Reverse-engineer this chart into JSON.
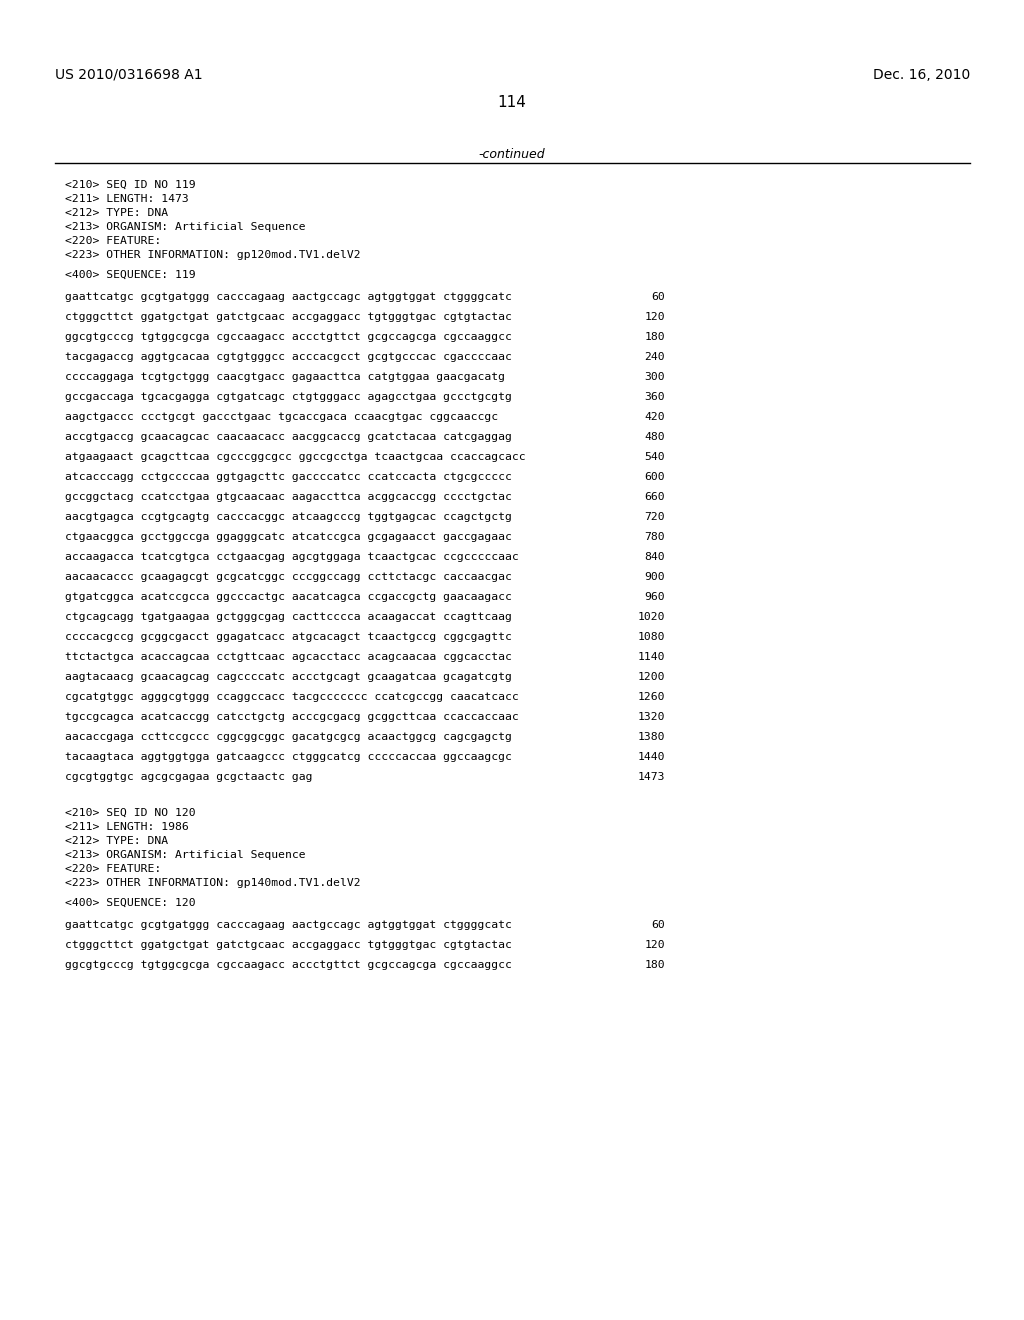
{
  "patent_left": "US 2010/0316698 A1",
  "patent_right": "Dec. 16, 2010",
  "page_number": "114",
  "continued_label": "-continued",
  "background_color": "#ffffff",
  "text_color": "#000000",
  "header_section": [
    "<210> SEQ ID NO 119",
    "<211> LENGTH: 1473",
    "<212> TYPE: DNA",
    "<213> ORGANISM: Artificial Sequence",
    "<220> FEATURE:",
    "<223> OTHER INFORMATION: gp120mod.TV1.delV2"
  ],
  "sequence_label_119": "<400> SEQUENCE: 119",
  "sequence_lines_119": [
    [
      "gaattcatgc gcgtgatggg cacccagaag aactgccagc agtggtggat ctggggcatc",
      "60"
    ],
    [
      "ctgggcttct ggatgctgat gatctgcaac accgaggacc tgtgggtgac cgtgtactac",
      "120"
    ],
    [
      "ggcgtgcccg tgtggcgcga cgccaagacc accctgttct gcgccagcga cgccaaggcc",
      "180"
    ],
    [
      "tacgagaccg aggtgcacaa cgtgtgggcc acccacgcct gcgtgcccac cgaccccaac",
      "240"
    ],
    [
      "ccccaggaga tcgtgctggg caacgtgacc gagaacttca catgtggaa gaacgacatg",
      "300"
    ],
    [
      "gccgaccaga tgcacgagga cgtgatcagc ctgtgggacc agagcctgaa gccctgcgtg",
      "360"
    ],
    [
      "aagctgaccc ccctgcgt gaccctgaac tgcaccgaca ccaacgtgac cggcaaccgc",
      "420"
    ],
    [
      "accgtgaccg gcaacagcac caacaacacc aacggcaccg gcatctacaa catcgaggag",
      "480"
    ],
    [
      "atgaagaact gcagcttcaa cgcccggcgcc ggccgcctga tcaactgcaa ccaccagcacc",
      "540"
    ],
    [
      "atcacccagg cctgccccaa ggtgagcttc gaccccatcc ccatccacta ctgcgccccc",
      "600"
    ],
    [
      "gccggctacg ccatcctgaa gtgcaacaac aagaccttca acggcaccgg cccctgctac",
      "660"
    ],
    [
      "aacgtgagca ccgtgcagtg cacccacggc atcaagcccg tggtgagcac ccagctgctg",
      "720"
    ],
    [
      "ctgaacggca gcctggccga ggagggcatc atcatccgca gcgagaacct gaccgagaac",
      "780"
    ],
    [
      "accaagacca tcatcgtgca cctgaacgag agcgtggaga tcaactgcac ccgcccccaac",
      "840"
    ],
    [
      "aacaacaccc gcaagagcgt gcgcatcggc cccggccagg ccttctacgc caccaacgac",
      "900"
    ],
    [
      "gtgatcggca acatccgcca ggcccactgc aacatcagca ccgaccgctg gaacaagacc",
      "960"
    ],
    [
      "ctgcagcagg tgatgaagaa gctgggcgag cacttcccca acaagaccat ccagttcaag",
      "1020"
    ],
    [
      "ccccacgccg gcggcgacct ggagatcacc atgcacagct tcaactgccg cggcgagttc",
      "1080"
    ],
    [
      "ttctactgca acaccagcaa cctgttcaac agcacctacc acagcaacaa cggcacctac",
      "1140"
    ],
    [
      "aagtacaacg gcaacagcag cagccccatc accctgcagt gcaagatcaa gcagatcgtg",
      "1200"
    ],
    [
      "cgcatgtggc agggcgtggg ccaggccacc tacgccccccc ccatcgccgg caacatcacc",
      "1260"
    ],
    [
      "tgccgcagca acatcaccgg catcctgctg acccgcgacg gcggcttcaa ccaccaccaac",
      "1320"
    ],
    [
      "aacaccgaga ccttccgccc cggcggcggc gacatgcgcg acaactggcg cagcgagctg",
      "1380"
    ],
    [
      "tacaagtaca aggtggtgga gatcaagccc ctgggcatcg cccccaccaa ggccaagcgc",
      "1440"
    ],
    [
      "cgcgtggtgc agcgcgagaa gcgctaactc gag",
      "1473"
    ]
  ],
  "header_section_120": [
    "<210> SEQ ID NO 120",
    "<211> LENGTH: 1986",
    "<212> TYPE: DNA",
    "<213> ORGANISM: Artificial Sequence",
    "<220> FEATURE:",
    "<223> OTHER INFORMATION: gp140mod.TV1.delV2"
  ],
  "sequence_label_120": "<400> SEQUENCE: 120",
  "sequence_lines_120": [
    [
      "gaattcatgc gcgtgatggg cacccagaag aactgccagc agtggtggat ctggggcatc",
      "60"
    ],
    [
      "ctgggcttct ggatgctgat gatctgcaac accgaggacc tgtgggtgac cgtgtactac",
      "120"
    ],
    [
      "ggcgtgcccg tgtggcgcga cgccaagacc accctgttct gcgccagcga cgccaaggcc",
      "180"
    ]
  ]
}
